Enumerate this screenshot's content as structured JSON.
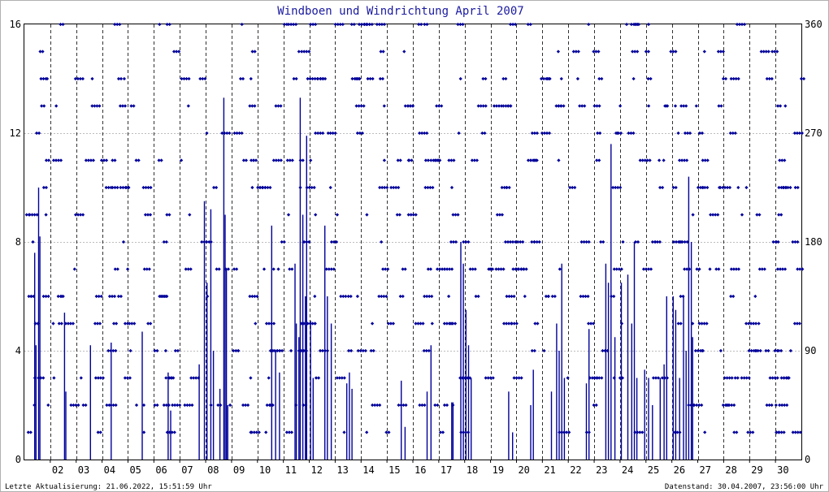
{
  "page": {
    "footer_left": "Letzte Aktualisierung: 21.06.2022, 15:51:59 Uhr",
    "footer_right": "Datenstand: 30.04.2007, 23:56:00 Uhr"
  },
  "colors": {
    "data": "#00009a",
    "grid": "#000000",
    "title": "#1a1aa0",
    "frame": "#808080"
  },
  "chart_data": {
    "type": "bar",
    "title": "Windboen und Windrichtung April 2007",
    "xlabel": "",
    "ylabel": "",
    "y2label": "",
    "ylim": [
      0,
      16
    ],
    "y2lim": [
      0,
      360
    ],
    "yticks": [
      0,
      4,
      8,
      12,
      16
    ],
    "y2ticks": [
      0,
      90,
      180,
      270,
      360
    ],
    "grid": true,
    "x_day_range": [
      1,
      30
    ],
    "xticks": [
      "02",
      "03",
      "04",
      "05",
      "06",
      "07",
      "08",
      "09",
      "10",
      "11",
      "12",
      "13",
      "14",
      "15",
      "16",
      "17",
      "18",
      "19",
      "20",
      "21",
      "22",
      "23",
      "24",
      "25",
      "26",
      "27",
      "28",
      "29",
      "30"
    ],
    "series": [
      {
        "kind": "gust_peaks",
        "points": [
          [
            1.4,
            7.6
          ],
          [
            1.45,
            4.2
          ],
          [
            1.55,
            10.0
          ],
          [
            1.6,
            8.2
          ],
          [
            2.55,
            5.4
          ],
          [
            2.6,
            2.5
          ],
          [
            3.55,
            4.2
          ],
          [
            4.35,
            4.3
          ],
          [
            5.55,
            4.7
          ],
          [
            6.55,
            3.2
          ],
          [
            6.65,
            1.8
          ],
          [
            7.75,
            3.5
          ],
          [
            7.95,
            9.5
          ],
          [
            8.05,
            6.5
          ],
          [
            8.2,
            9.2
          ],
          [
            8.3,
            4.0
          ],
          [
            8.55,
            2.6
          ],
          [
            8.7,
            13.3
          ],
          [
            8.75,
            9.0
          ],
          [
            8.8,
            7.0
          ],
          [
            8.85,
            2.0
          ],
          [
            10.55,
            8.6
          ],
          [
            10.7,
            4.0
          ],
          [
            10.85,
            3.2
          ],
          [
            11.45,
            7.2
          ],
          [
            11.5,
            5.0
          ],
          [
            11.6,
            4.5
          ],
          [
            11.65,
            13.3
          ],
          [
            11.75,
            9.0
          ],
          [
            11.85,
            6.0
          ],
          [
            11.9,
            11.9
          ],
          [
            12.05,
            5.1
          ],
          [
            12.15,
            3.0
          ],
          [
            12.6,
            8.6
          ],
          [
            12.7,
            6.0
          ],
          [
            12.85,
            5.0
          ],
          [
            13.45,
            2.8
          ],
          [
            13.55,
            3.2
          ],
          [
            13.65,
            2.6
          ],
          [
            15.55,
            2.9
          ],
          [
            15.7,
            1.2
          ],
          [
            16.55,
            2.5
          ],
          [
            16.7,
            4.2
          ],
          [
            17.5,
            2.1
          ],
          [
            17.55,
            2.1
          ],
          [
            17.85,
            8.0
          ],
          [
            17.95,
            7.2
          ],
          [
            18.05,
            5.5
          ],
          [
            18.15,
            4.2
          ],
          [
            18.25,
            3.0
          ],
          [
            19.7,
            2.5
          ],
          [
            19.85,
            1.0
          ],
          [
            20.55,
            2.0
          ],
          [
            20.65,
            3.3
          ],
          [
            21.35,
            2.5
          ],
          [
            21.55,
            5.0
          ],
          [
            21.65,
            4.0
          ],
          [
            21.75,
            7.2
          ],
          [
            21.85,
            3.0
          ],
          [
            22.7,
            2.8
          ],
          [
            22.8,
            4.8
          ],
          [
            23.45,
            7.2
          ],
          [
            23.55,
            6.5
          ],
          [
            23.65,
            11.6
          ],
          [
            23.8,
            4.5
          ],
          [
            24.05,
            6.5
          ],
          [
            24.3,
            6.8
          ],
          [
            24.45,
            5.0
          ],
          [
            24.55,
            8.0
          ],
          [
            24.65,
            3.0
          ],
          [
            24.95,
            3.3
          ],
          [
            25.1,
            3.0
          ],
          [
            25.25,
            2.0
          ],
          [
            25.55,
            3.0
          ],
          [
            25.7,
            3.5
          ],
          [
            25.8,
            6.0
          ],
          [
            26.05,
            6.0
          ],
          [
            26.15,
            5.5
          ],
          [
            26.3,
            3.0
          ],
          [
            26.45,
            6.0
          ],
          [
            26.55,
            4.0
          ],
          [
            26.65,
            10.4
          ],
          [
            26.75,
            8.0
          ],
          [
            26.8,
            4.5
          ]
        ]
      },
      {
        "kind": "wind_direction_deg",
        "note": "scatter in 22.5 degree sectors, right axis",
        "sectors": [
          22.5,
          45,
          67.5,
          90,
          112.5,
          135,
          157.5,
          180,
          202.5,
          225,
          247.5,
          270,
          292.5,
          315,
          337.5,
          360
        ]
      }
    ]
  }
}
